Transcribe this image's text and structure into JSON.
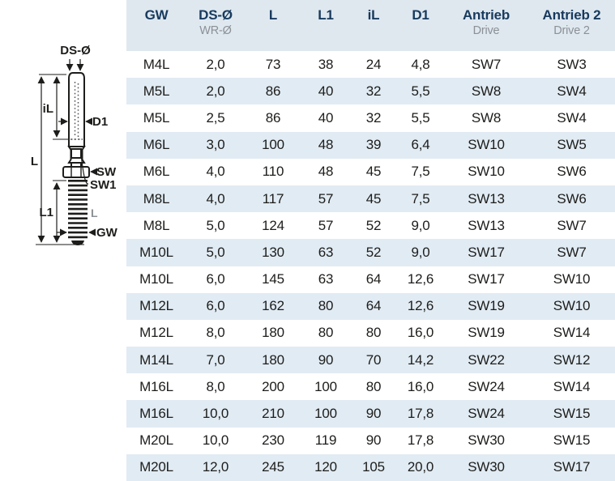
{
  "drawing": {
    "labels": {
      "ds_o": "DS-Ø",
      "il": "iL",
      "d1": "D1",
      "sw1": "SW1",
      "l": "L",
      "sw": "SW",
      "l1": "L1",
      "thread_l": "L",
      "gw": "GW"
    }
  },
  "table": {
    "columns": [
      {
        "label": "GW",
        "sub": ""
      },
      {
        "label": "DS-Ø",
        "sub": "WR-Ø"
      },
      {
        "label": "L",
        "sub": ""
      },
      {
        "label": "L1",
        "sub": ""
      },
      {
        "label": "iL",
        "sub": ""
      },
      {
        "label": "D1",
        "sub": ""
      },
      {
        "label": "Antrieb",
        "sub": "Drive"
      },
      {
        "label": "Antrieb 2",
        "sub": "Drive 2"
      }
    ],
    "rows": [
      [
        "M4L",
        "2,0",
        "73",
        "38",
        "24",
        "4,8",
        "SW7",
        "SW3"
      ],
      [
        "M5L",
        "2,0",
        "86",
        "40",
        "32",
        "5,5",
        "SW8",
        "SW4"
      ],
      [
        "M5L",
        "2,5",
        "86",
        "40",
        "32",
        "5,5",
        "SW8",
        "SW4"
      ],
      [
        "M6L",
        "3,0",
        "100",
        "48",
        "39",
        "6,4",
        "SW10",
        "SW5"
      ],
      [
        "M6L",
        "4,0",
        "110",
        "48",
        "45",
        "7,5",
        "SW10",
        "SW6"
      ],
      [
        "M8L",
        "4,0",
        "117",
        "57",
        "45",
        "7,5",
        "SW13",
        "SW6"
      ],
      [
        "M8L",
        "5,0",
        "124",
        "57",
        "52",
        "9,0",
        "SW13",
        "SW7"
      ],
      [
        "M10L",
        "5,0",
        "130",
        "63",
        "52",
        "9,0",
        "SW17",
        "SW7"
      ],
      [
        "M10L",
        "6,0",
        "145",
        "63",
        "64",
        "12,6",
        "SW17",
        "SW10"
      ],
      [
        "M12L",
        "6,0",
        "162",
        "80",
        "64",
        "12,6",
        "SW19",
        "SW10"
      ],
      [
        "M12L",
        "8,0",
        "180",
        "80",
        "80",
        "16,0",
        "SW19",
        "SW14"
      ],
      [
        "M14L",
        "7,0",
        "180",
        "90",
        "70",
        "14,2",
        "SW22",
        "SW12"
      ],
      [
        "M16L",
        "8,0",
        "200",
        "100",
        "80",
        "16,0",
        "SW24",
        "SW14"
      ],
      [
        "M16L",
        "10,0",
        "210",
        "100",
        "90",
        "17,8",
        "SW24",
        "SW15"
      ],
      [
        "M20L",
        "10,0",
        "230",
        "119",
        "90",
        "17,8",
        "SW30",
        "SW15"
      ],
      [
        "M20L",
        "12,0",
        "245",
        "120",
        "105",
        "20,0",
        "SW30",
        "SW17"
      ]
    ]
  },
  "colors": {
    "header_bg": "#dfe8ef",
    "zebra_bg": "#e1ebf3",
    "header_text": "#173a5e",
    "sub_text": "#8b9196",
    "body_text": "#1d1d1b",
    "line": "#1d1d1b"
  }
}
